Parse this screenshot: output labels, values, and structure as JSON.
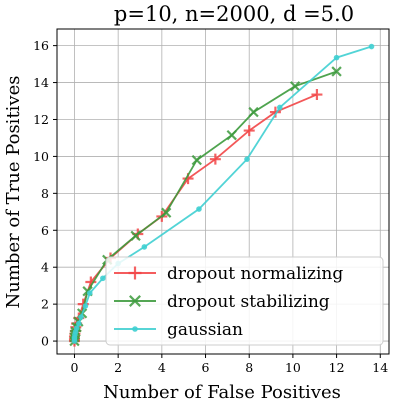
{
  "chart_data": {
    "type": "line",
    "title": "p=10, n=2000, d =5.0",
    "xlabel": "Number of False Positives",
    "ylabel": "Number of True Positives",
    "xlim": [
      -0.8,
      14.4
    ],
    "ylim": [
      -0.7,
      16.9
    ],
    "xticks": [
      0,
      2,
      4,
      6,
      8,
      10,
      12,
      14
    ],
    "yticks": [
      0,
      2,
      4,
      6,
      8,
      10,
      12,
      14,
      16
    ],
    "grid": true,
    "legend_position": "lower right",
    "series": [
      {
        "name": "dropout normalizing",
        "color": "#f24546",
        "marker": "plus",
        "x": [
          0,
          0,
          0,
          0.02,
          0.04,
          0.06,
          0.1,
          0.2,
          0.4,
          0.75,
          1.65,
          2.9,
          4.0,
          5.2,
          6.45,
          8.0,
          9.2,
          11.1
        ],
        "y": [
          0,
          0.1,
          0.25,
          0.4,
          0.55,
          0.75,
          0.95,
          1.25,
          2.0,
          3.2,
          4.5,
          5.8,
          6.75,
          8.8,
          9.85,
          11.4,
          12.4,
          13.35
        ]
      },
      {
        "name": "dropout stabilizing",
        "color": "#3c9a3c",
        "marker": "x",
        "x": [
          0,
          0,
          0.02,
          0.05,
          0.1,
          0.18,
          0.35,
          0.6,
          1.5,
          2.8,
          4.2,
          5.6,
          7.2,
          8.2,
          10.1,
          12.0
        ],
        "y": [
          0,
          0.2,
          0.35,
          0.5,
          0.75,
          1.05,
          1.5,
          2.7,
          4.4,
          5.7,
          6.95,
          9.8,
          11.15,
          12.4,
          13.8,
          14.6
        ]
      },
      {
        "name": "gaussian",
        "color": "#3fcfd1",
        "marker": "dot",
        "x": [
          0,
          0,
          0,
          0.02,
          0.05,
          0.1,
          0.2,
          0.3,
          0.5,
          0.7,
          1.3,
          2.0,
          3.2,
          5.7,
          7.9,
          9.4,
          12.0,
          13.6
        ],
        "y": [
          0,
          0.1,
          0.2,
          0.35,
          0.5,
          0.7,
          0.95,
          1.3,
          1.9,
          2.6,
          3.4,
          4.2,
          5.1,
          7.15,
          9.85,
          12.65,
          15.35,
          15.95
        ]
      }
    ]
  }
}
